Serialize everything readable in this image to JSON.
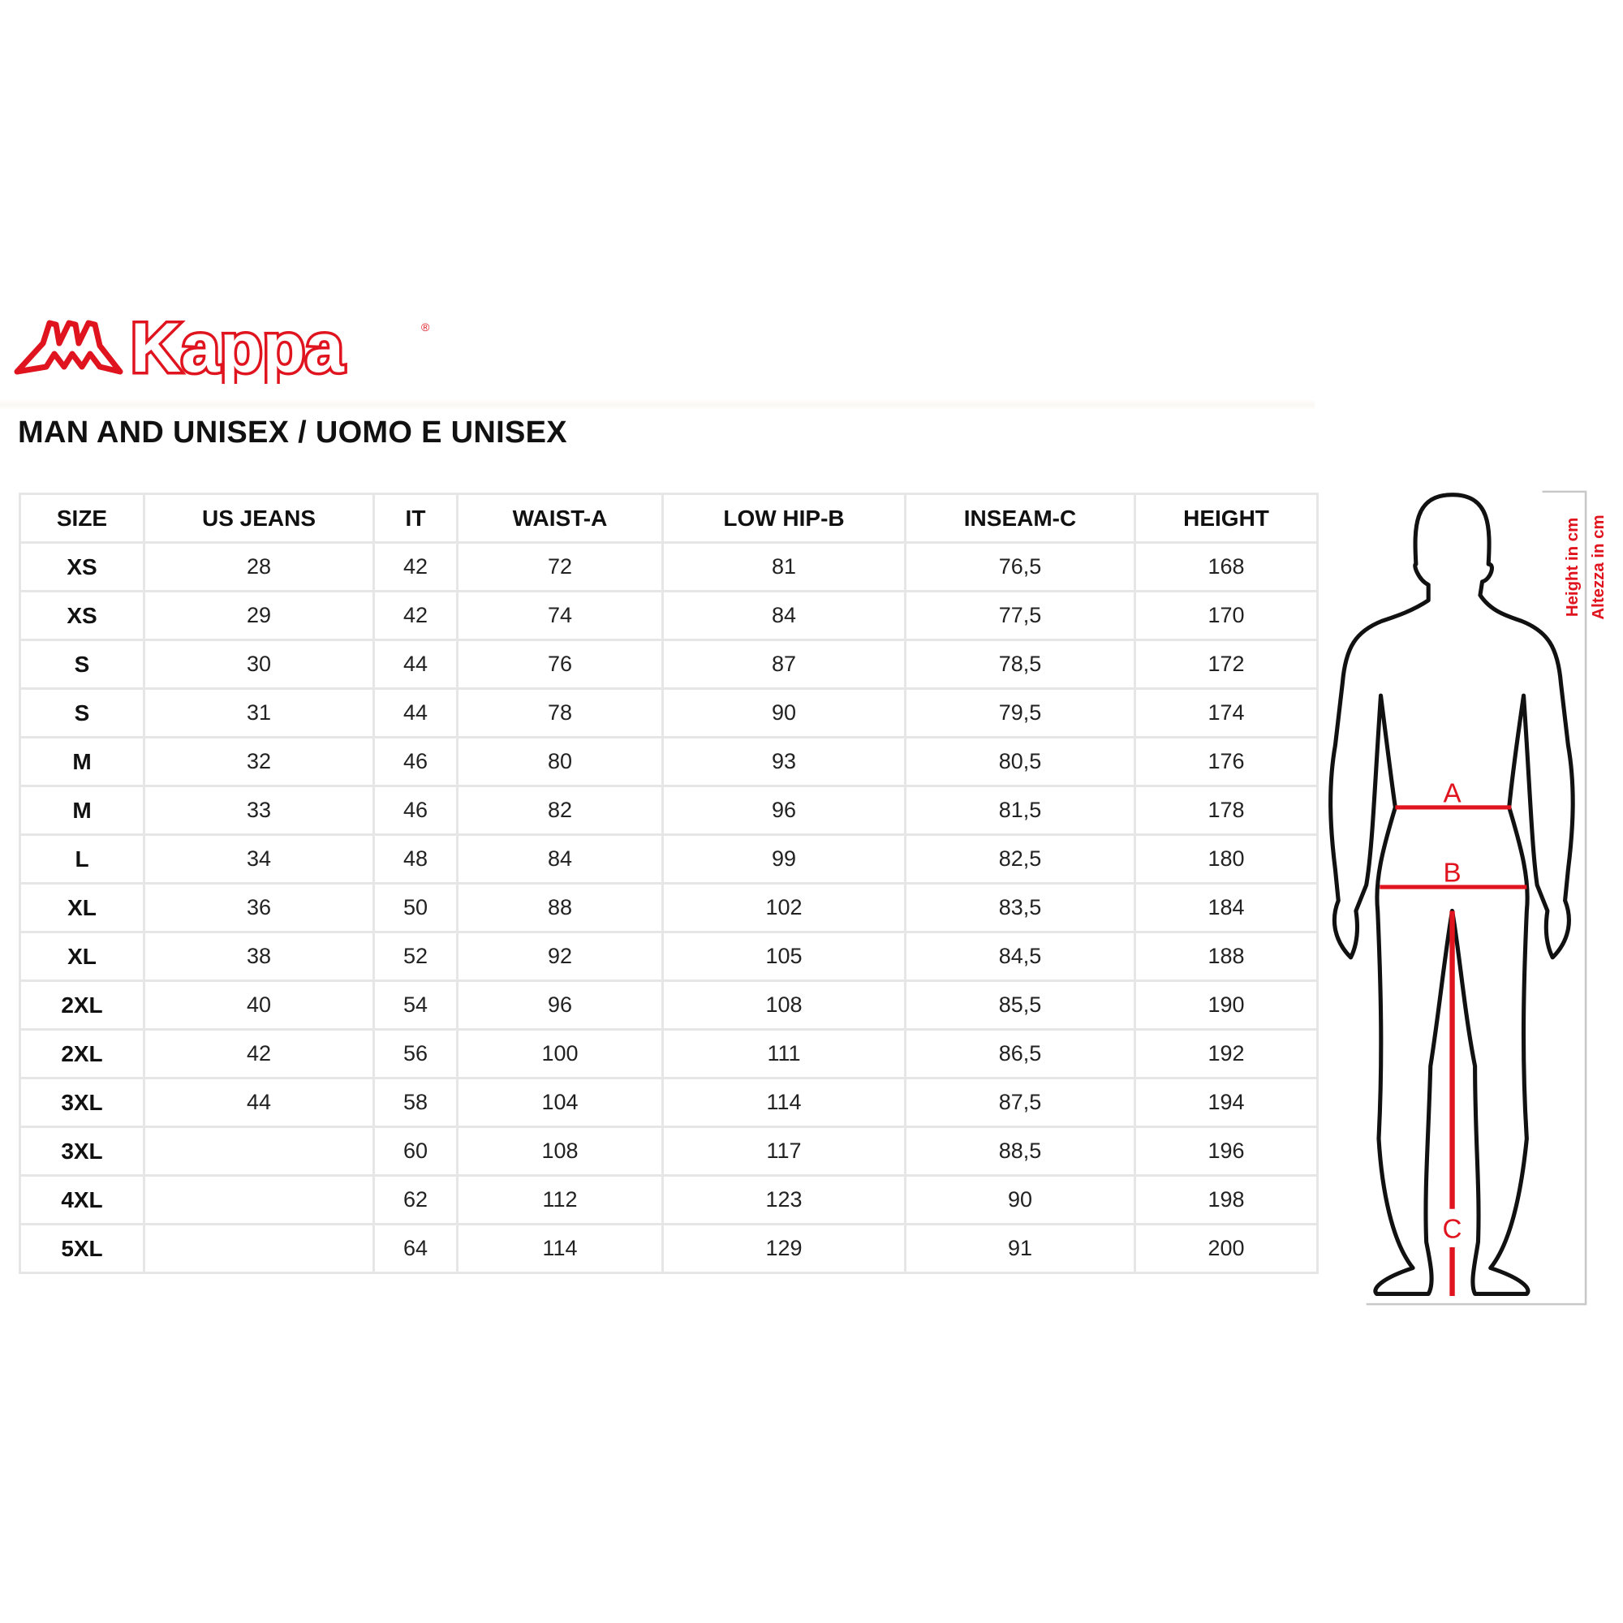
{
  "logo": {
    "brand": "Kappa",
    "registered": "®"
  },
  "title": "MAN AND UNISEX / UOMO E UNISEX",
  "table": {
    "headers": [
      "SIZE",
      "US JEANS",
      "IT",
      "WAIST-A",
      "LOW HIP-B",
      "INSEAM-C",
      "HEIGHT"
    ],
    "rows": [
      [
        "XS",
        "28",
        "42",
        "72",
        "81",
        "76,5",
        "168"
      ],
      [
        "XS",
        "29",
        "42",
        "74",
        "84",
        "77,5",
        "170"
      ],
      [
        "S",
        "30",
        "44",
        "76",
        "87",
        "78,5",
        "172"
      ],
      [
        "S",
        "31",
        "44",
        "78",
        "90",
        "79,5",
        "174"
      ],
      [
        "M",
        "32",
        "46",
        "80",
        "93",
        "80,5",
        "176"
      ],
      [
        "M",
        "33",
        "46",
        "82",
        "96",
        "81,5",
        "178"
      ],
      [
        "L",
        "34",
        "48",
        "84",
        "99",
        "82,5",
        "180"
      ],
      [
        "XL",
        "36",
        "50",
        "88",
        "102",
        "83,5",
        "184"
      ],
      [
        "XL",
        "38",
        "52",
        "92",
        "105",
        "84,5",
        "188"
      ],
      [
        "2XL",
        "40",
        "54",
        "96",
        "108",
        "85,5",
        "190"
      ],
      [
        "2XL",
        "42",
        "56",
        "100",
        "111",
        "86,5",
        "192"
      ],
      [
        "3XL",
        "44",
        "58",
        "104",
        "114",
        "87,5",
        "194"
      ],
      [
        "3XL",
        "",
        "60",
        "108",
        "117",
        "88,5",
        "196"
      ],
      [
        "4XL",
        "",
        "62",
        "112",
        "123",
        "90",
        "198"
      ],
      [
        "5XL",
        "",
        "64",
        "114",
        "129",
        "91",
        "200"
      ]
    ]
  },
  "figure": {
    "label_a": "A",
    "label_b": "B",
    "label_c": "C",
    "height_en": "Height in cm",
    "height_it": "Altezza in cm"
  },
  "colors": {
    "accent": "#e0141e",
    "outline": "#111111",
    "grid": "#e6e6e6"
  }
}
